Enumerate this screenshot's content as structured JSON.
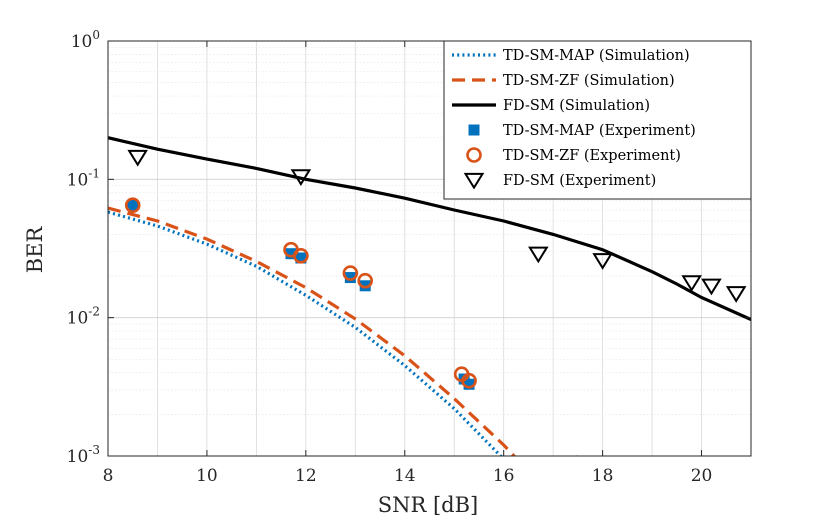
{
  "chart_data": {
    "type": "line",
    "xlabel": "SNR [dB]",
    "ylabel": "BER",
    "xlim": [
      8,
      21
    ],
    "ylim": [
      0.001,
      1
    ],
    "yscale": "log",
    "grid": true,
    "minor_grid": true,
    "legend_position": "top-right",
    "x_ticks": [
      8,
      10,
      12,
      14,
      16,
      18,
      20
    ],
    "x_tick_labels": [
      "8",
      "10",
      "12",
      "14",
      "16",
      "18",
      "20"
    ],
    "y_ticks": [
      {
        "value": 1,
        "base": "10",
        "exp": "0"
      },
      {
        "value": 0.1,
        "base": "10",
        "exp": "-1"
      },
      {
        "value": 0.01,
        "base": "10",
        "exp": "-2"
      },
      {
        "value": 0.001,
        "base": "10",
        "exp": "-3"
      }
    ],
    "series": [
      {
        "name": "TD-SM-MAP (Simulation)",
        "kind": "line",
        "style": "dotted",
        "color": "#0072BD",
        "x": [
          8,
          9,
          10,
          11,
          12,
          13,
          14,
          15,
          16,
          17,
          17.1
        ],
        "y": [
          0.058,
          0.046,
          0.034,
          0.0235,
          0.0145,
          0.0085,
          0.0045,
          0.0022,
          0.00095,
          0.00038,
          0.001
        ]
      },
      {
        "name": "TD-SM-ZF (Simulation)",
        "kind": "line",
        "style": "dashed",
        "color": "#D95319",
        "x": [
          8,
          9,
          10,
          11,
          12,
          13,
          14,
          15,
          16,
          17,
          17.5
        ],
        "y": [
          0.062,
          0.05,
          0.037,
          0.0255,
          0.0165,
          0.0098,
          0.0053,
          0.0026,
          0.0012,
          0.0005,
          0.001
        ]
      },
      {
        "name": "FD-SM (Simulation)",
        "kind": "line",
        "style": "solid",
        "color": "#000000",
        "x": [
          8,
          9,
          10,
          11,
          12,
          13,
          14,
          15,
          16,
          17,
          18,
          19,
          19.5,
          20,
          21
        ],
        "y": [
          0.2,
          0.165,
          0.14,
          0.12,
          0.1,
          0.0865,
          0.073,
          0.06,
          0.05,
          0.04,
          0.031,
          0.0215,
          0.0175,
          0.014,
          0.0097
        ]
      },
      {
        "name": "TD-SM-MAP (Experiment)",
        "kind": "marker",
        "marker": "square",
        "color": "#0072BD",
        "x": [
          8.5,
          11.7,
          11.9,
          12.9,
          13.2,
          15.2,
          15.3
        ],
        "y": [
          0.065,
          0.029,
          0.027,
          0.0195,
          0.017,
          0.0036,
          0.0033
        ]
      },
      {
        "name": "TD-SM-ZF  (Experiment)",
        "kind": "marker",
        "marker": "circle",
        "color": "#D95319",
        "x": [
          8.5,
          11.7,
          11.9,
          12.9,
          13.2,
          15.15,
          15.3
        ],
        "y": [
          0.065,
          0.031,
          0.028,
          0.021,
          0.0185,
          0.0039,
          0.0035
        ]
      },
      {
        "name": "FD-SM (Experiment)",
        "kind": "marker",
        "marker": "triangle-down",
        "color": "#000000",
        "x": [
          8.6,
          11.9,
          16.7,
          18,
          19.8,
          20.2,
          20.7
        ],
        "y": [
          0.145,
          0.105,
          0.029,
          0.026,
          0.018,
          0.017,
          0.015
        ]
      }
    ]
  }
}
